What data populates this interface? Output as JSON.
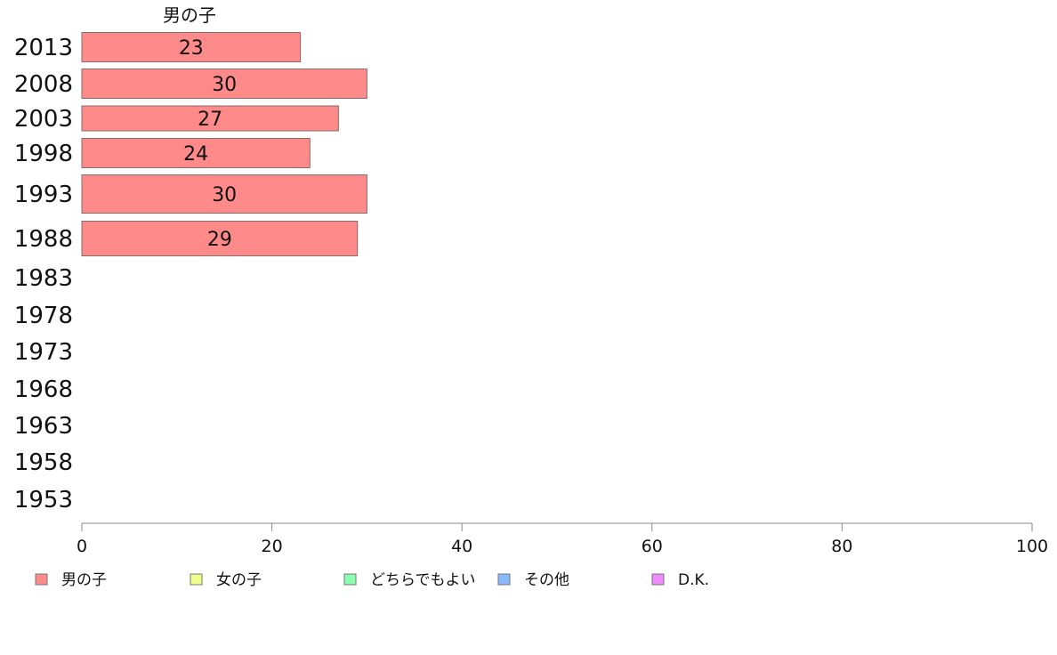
{
  "chart_data": {
    "type": "bar",
    "orientation": "horizontal",
    "categories": [
      "2013",
      "2008",
      "2003",
      "1998",
      "1993",
      "1988",
      "1983",
      "1978",
      "1973",
      "1968",
      "1963",
      "1958",
      "1953"
    ],
    "series": [
      {
        "name": "男の子",
        "values": [
          23,
          30,
          27,
          24,
          30,
          29,
          null,
          null,
          null,
          null,
          null,
          null,
          null
        ],
        "color": "#ff8a8a"
      }
    ],
    "series_title": "男の子",
    "xlim": [
      0,
      100
    ],
    "xticks": [
      "0",
      "20",
      "40",
      "60",
      "80",
      "100"
    ],
    "grid": false,
    "legend_position": "bottom",
    "legend": [
      {
        "label": "男の子",
        "color": "#ff8a8a"
      },
      {
        "label": "女の子",
        "color": "#f0ff8a"
      },
      {
        "label": "どちらでもよい",
        "color": "#8affb0"
      },
      {
        "label": "その他",
        "color": "#8ab8ff"
      },
      {
        "label": "D.K.",
        "color": "#f08aff"
      }
    ]
  }
}
